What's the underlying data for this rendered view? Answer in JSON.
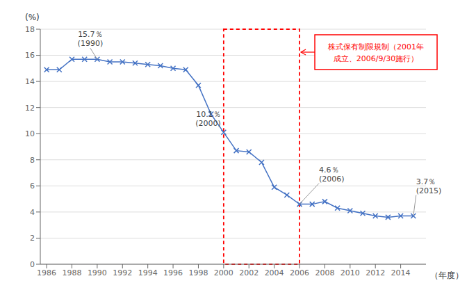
{
  "chart_data": {
    "type": "line",
    "x": [
      1986,
      1987,
      1988,
      1989,
      1990,
      1991,
      1992,
      1993,
      1994,
      1995,
      1996,
      1997,
      1998,
      1999,
      2000,
      2001,
      2002,
      2003,
      2004,
      2005,
      2006,
      2007,
      2008,
      2009,
      2010,
      2011,
      2012,
      2013,
      2014,
      2015
    ],
    "values": [
      14.9,
      14.9,
      15.7,
      15.7,
      15.7,
      15.5,
      15.5,
      15.4,
      15.3,
      15.2,
      15.0,
      14.9,
      13.7,
      11.5,
      10.1,
      8.7,
      8.6,
      7.8,
      5.9,
      5.3,
      4.6,
      4.6,
      4.8,
      4.3,
      4.1,
      3.9,
      3.7,
      3.6,
      3.7,
      3.7
    ],
    "color": "#4472C4",
    "marker": "x",
    "xlabel": "（年度）",
    "ylabel": "(%)",
    "xlim": [
      1985.5,
      2016.0
    ],
    "ylim": [
      0,
      18
    ],
    "xticks": [
      1986,
      1988,
      1990,
      1992,
      1994,
      1996,
      1998,
      2000,
      2002,
      2004,
      2006,
      2008,
      2010,
      2012,
      2014
    ],
    "yticks": [
      0,
      2,
      4,
      6,
      8,
      10,
      12,
      14,
      16,
      18
    ],
    "grid": true,
    "annotations": [
      {
        "text": "15.7％\n(1990)",
        "x": 1990,
        "y": 15.7
      },
      {
        "text": "10.1％\n(2000)",
        "x": 2000,
        "y": 10.1
      },
      {
        "text": "4.6％\n(2006)",
        "x": 2006,
        "y": 4.6
      },
      {
        "text": "3.7％\n(2015)",
        "x": 2015,
        "y": 3.7
      }
    ],
    "highlight": {
      "x": [
        2000,
        2006
      ],
      "y": [
        0,
        18
      ],
      "color": "#FF0000",
      "line_style": "dashed"
    },
    "callout": {
      "text": "株式保有制限規制（2001年\n成立、2006/9/30施行）",
      "color": "#FF0000"
    }
  }
}
